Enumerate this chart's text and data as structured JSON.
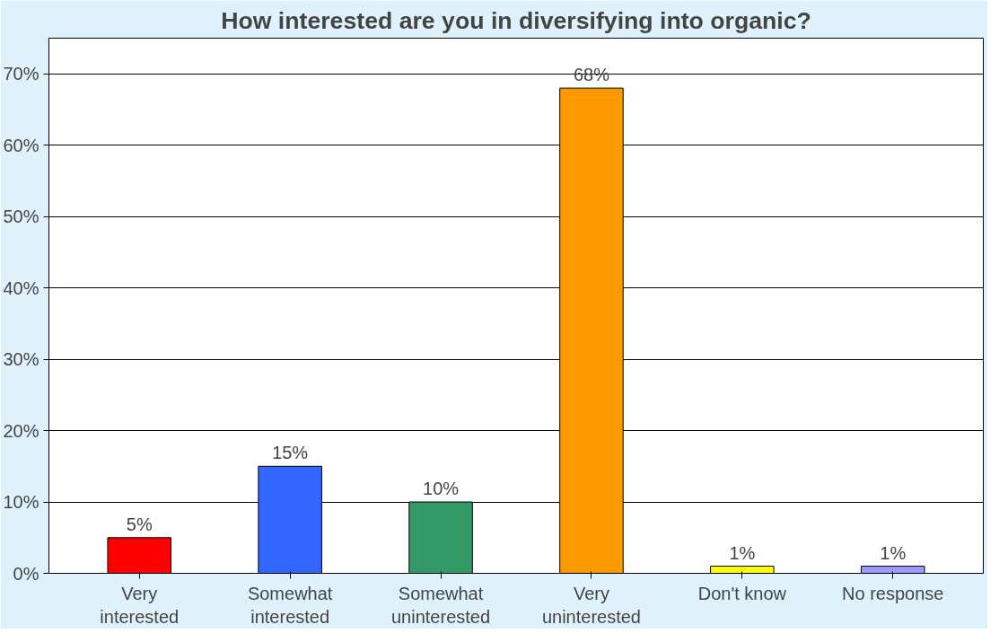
{
  "chart_data": {
    "type": "bar",
    "title": "How interested are you in diversifying into organic?",
    "categories": [
      "Very interested",
      "Somewhat interested",
      "Somewhat uninterested",
      "Very uninterested",
      "Don't know",
      "No response"
    ],
    "values": [
      5,
      15,
      10,
      68,
      1,
      1
    ],
    "colors": [
      "#ff0000",
      "#3366ff",
      "#339966",
      "#ff9900",
      "#ffff00",
      "#9999ff"
    ],
    "value_labels": [
      "5%",
      "15%",
      "10%",
      "68%",
      "1%",
      "1%"
    ],
    "ylim": [
      0,
      75
    ],
    "yticks": [
      {
        "value": 0,
        "label": "0%"
      },
      {
        "value": 10,
        "label": "10%"
      },
      {
        "value": 20,
        "label": "20%"
      },
      {
        "value": 30,
        "label": "30%"
      },
      {
        "value": 40,
        "label": "40%"
      },
      {
        "value": 50,
        "label": "50%"
      },
      {
        "value": 60,
        "label": "60%"
      },
      {
        "value": 70,
        "label": "70%"
      }
    ],
    "grid": "y"
  }
}
